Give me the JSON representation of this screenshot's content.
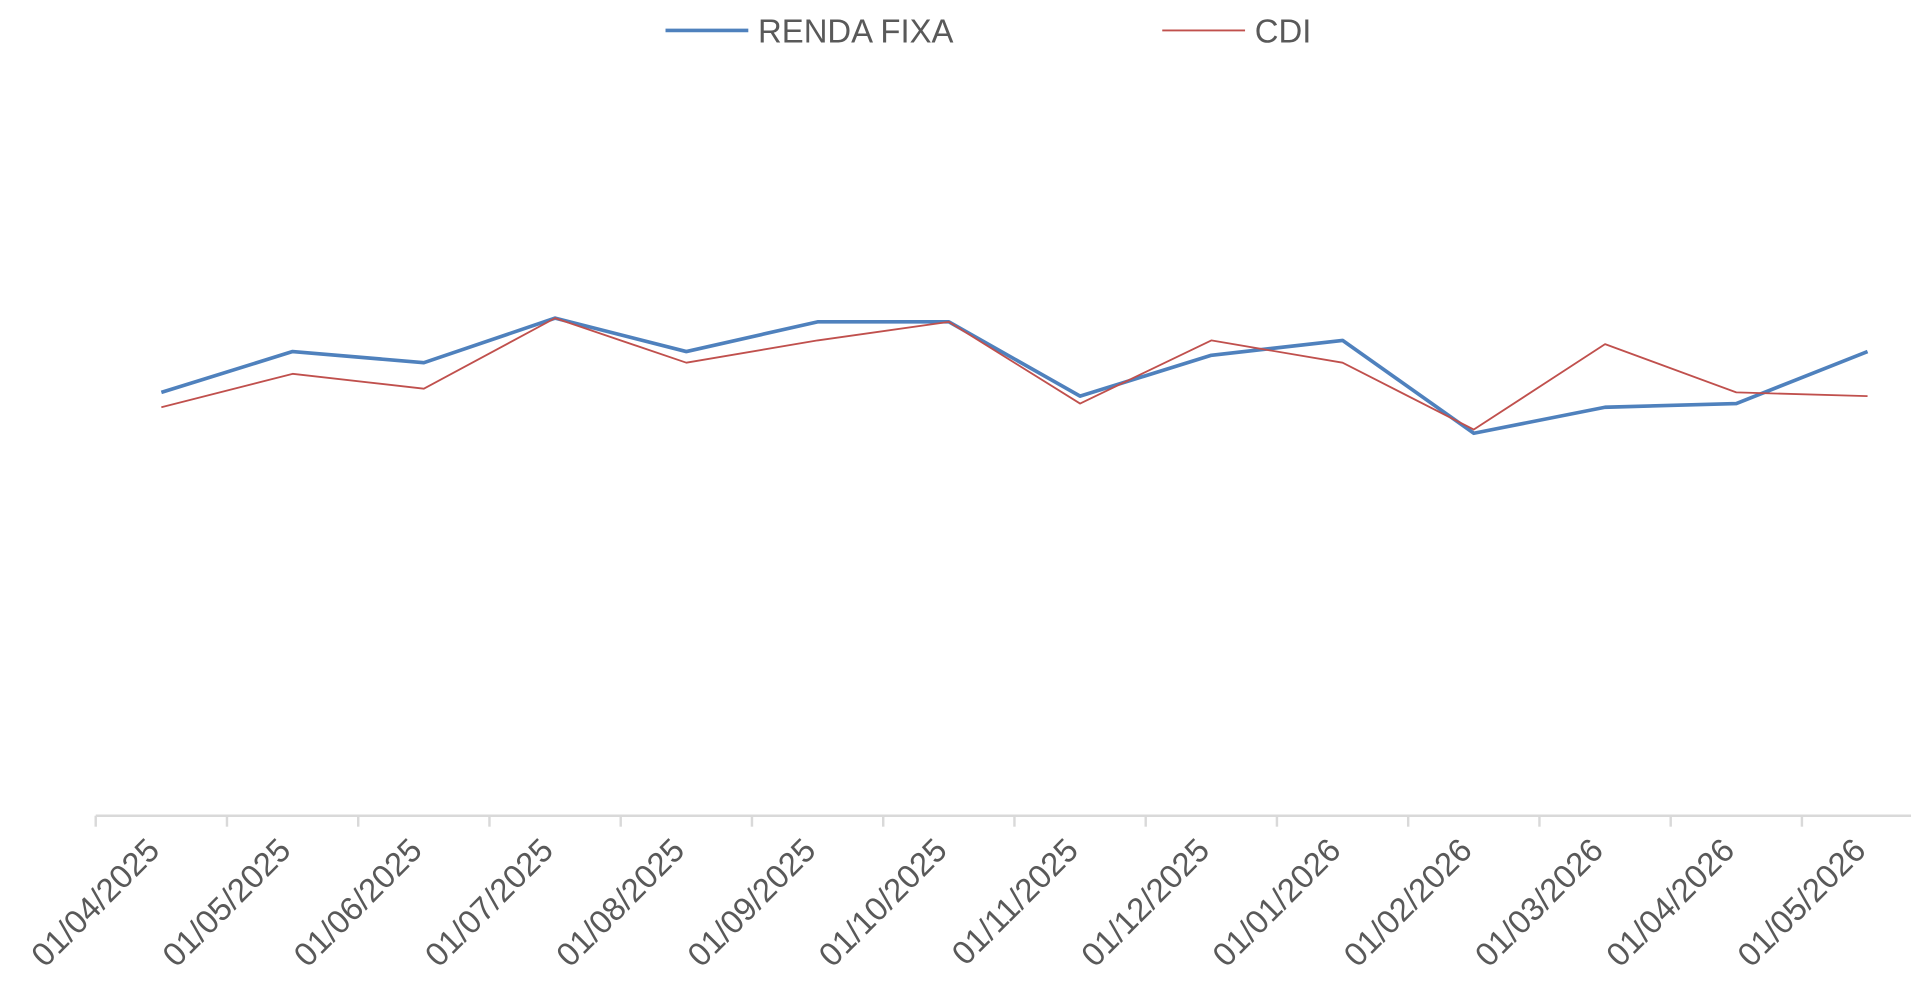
{
  "chart_data": {
    "type": "line",
    "categories": [
      "01/04/2025",
      "01/05/2025",
      "01/06/2025",
      "01/07/2025",
      "01/08/2025",
      "01/09/2025",
      "01/10/2025",
      "01/11/2025",
      "01/12/2025",
      "01/01/2026",
      "01/02/2026",
      "01/03/2026",
      "01/04/2026",
      "01/05/2026"
    ],
    "series": [
      {
        "name": "RENDA FIXA",
        "color": "#4f81bd",
        "values": [
          1.14,
          1.25,
          1.22,
          1.34,
          1.25,
          1.33,
          1.33,
          1.13,
          1.24,
          1.28,
          1.03,
          1.1,
          1.11,
          1.25
        ]
      },
      {
        "name": "CDI",
        "color": "#c0504d",
        "values": [
          1.1,
          1.19,
          1.15,
          1.34,
          1.22,
          1.28,
          1.33,
          1.11,
          1.28,
          1.22,
          1.04,
          1.27,
          1.14,
          1.13
        ]
      }
    ],
    "ylim": [
      0,
      2
    ],
    "legend": "top"
  }
}
